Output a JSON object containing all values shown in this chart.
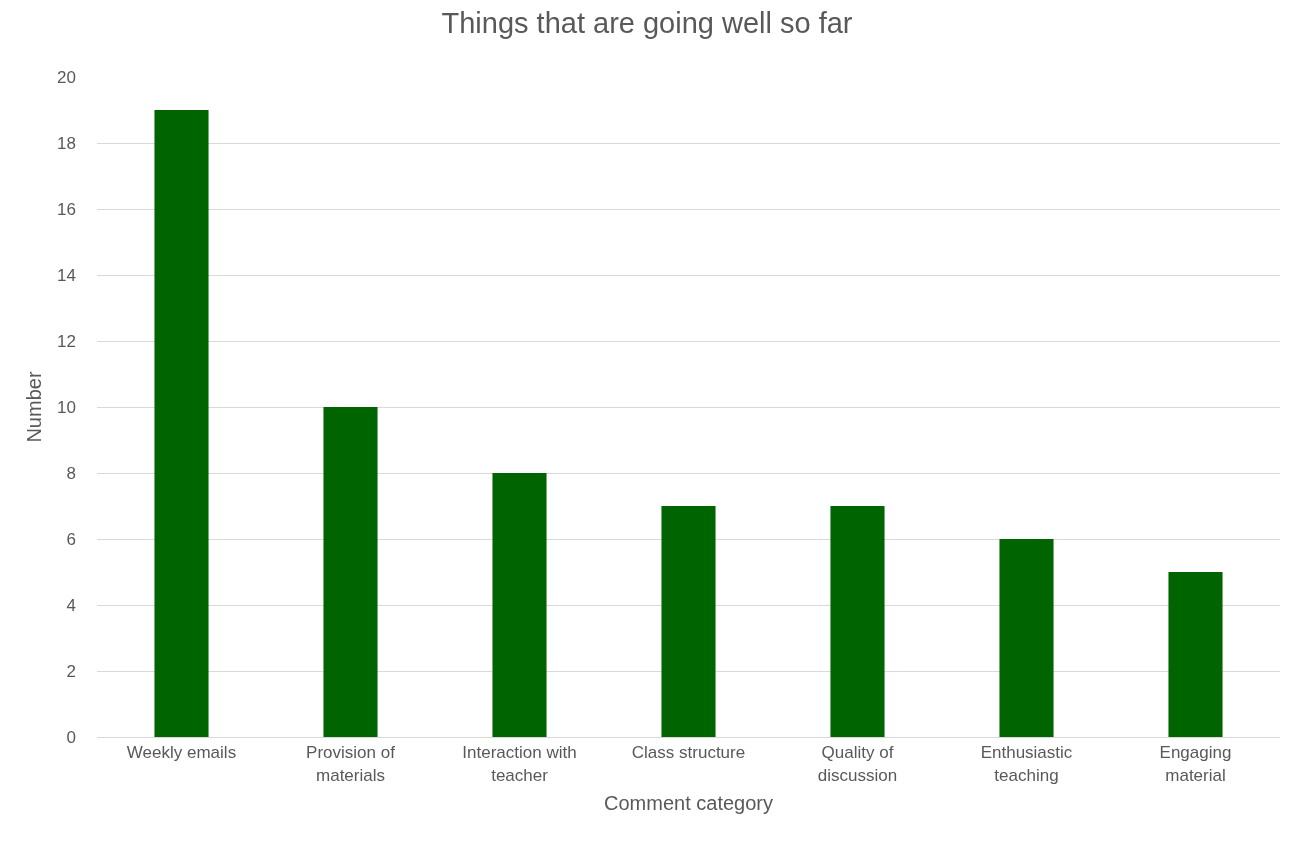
{
  "chart_data": {
    "type": "bar",
    "title": "Things that are going well so far",
    "xlabel": "Comment category",
    "ylabel": "Number",
    "categories": [
      "Weekly emails",
      "Provision of materials",
      "Interaction with teacher",
      "Class structure",
      "Quality of discussion",
      "Enthusiastic teaching",
      "Engaging material"
    ],
    "values": [
      19,
      10,
      8,
      7,
      7,
      6,
      5
    ],
    "color": "#006400",
    "ylim": [
      0,
      20
    ],
    "yticks": [
      0,
      2,
      4,
      6,
      8,
      10,
      12,
      14,
      16,
      18,
      20
    ],
    "grid": "y"
  }
}
